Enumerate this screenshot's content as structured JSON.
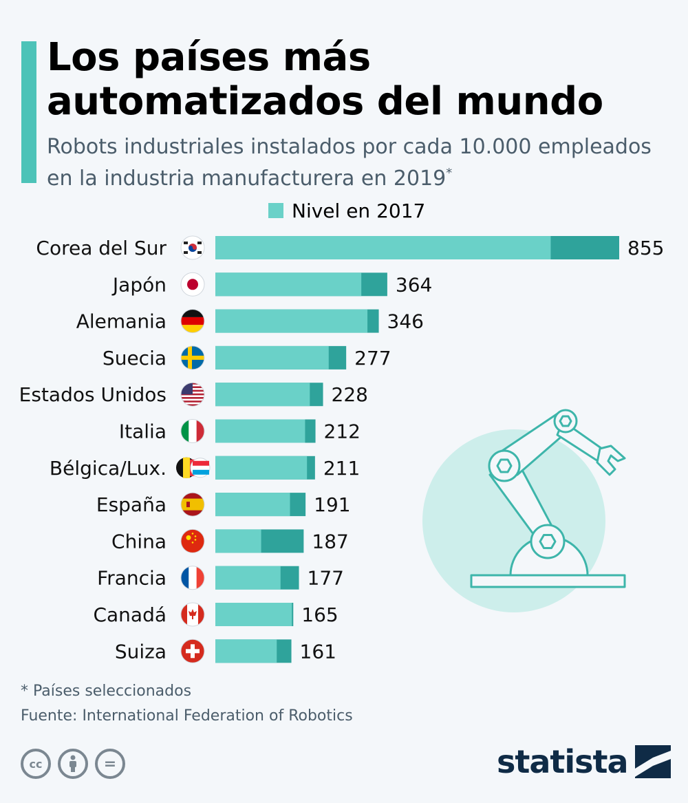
{
  "header": {
    "title_line1": "Los países más",
    "title_line2": "automatizados del mundo",
    "subtitle_line1": "Robots industriales instalados por cada 10.000 empleados",
    "subtitle_line2": "en la industria manufacturera en 2019",
    "subtitle_asterisk": "*"
  },
  "legend": {
    "label": "Nivel en 2017"
  },
  "colors": {
    "accent": "#4dc3b8",
    "level_2017": "#6ad1c8",
    "level_2019": "#2fa39b",
    "illustration_circle": "#cdeeeb",
    "illustration_line": "#3db5aa",
    "brand": "#0f2b46"
  },
  "chart_data": {
    "type": "bar",
    "orientation": "horizontal",
    "title": "Los países más automatizados del mundo",
    "subtitle": "Robots industriales instalados por cada 10.000 empleados en la industria manufacturera en 2019*",
    "xlim": [
      0,
      855
    ],
    "categories": [
      "Corea del Sur",
      "Japón",
      "Alemania",
      "Suecia",
      "Estados Unidos",
      "Italia",
      "Bélgica/Lux.",
      "España",
      "China",
      "Francia",
      "Canadá",
      "Suiza"
    ],
    "flags": [
      "south-korea-flag-icon",
      "japan-flag-icon",
      "germany-flag-icon",
      "sweden-flag-icon",
      "usa-flag-icon",
      "italy-flag-icon",
      "belgium-luxembourg-flag-icon",
      "spain-flag-icon",
      "china-flag-icon",
      "france-flag-icon",
      "canada-flag-icon",
      "switzerland-flag-icon"
    ],
    "series": [
      {
        "name": "2019",
        "values": [
          855,
          364,
          346,
          277,
          228,
          212,
          211,
          191,
          187,
          177,
          165,
          161
        ]
      },
      {
        "name": "Nivel en 2017",
        "values": [
          710,
          309,
          322,
          240,
          200,
          190,
          194,
          158,
          97,
          138,
          162,
          130
        ]
      }
    ]
  },
  "footer": {
    "footnote": "* Países seleccionados",
    "source": "Fuente: International Federation of Robotics",
    "license_icons": [
      "cc-icon",
      "attribution-icon",
      "no-derivatives-icon"
    ],
    "license_labels": [
      "cc",
      "="
    ],
    "brand": "statista"
  }
}
